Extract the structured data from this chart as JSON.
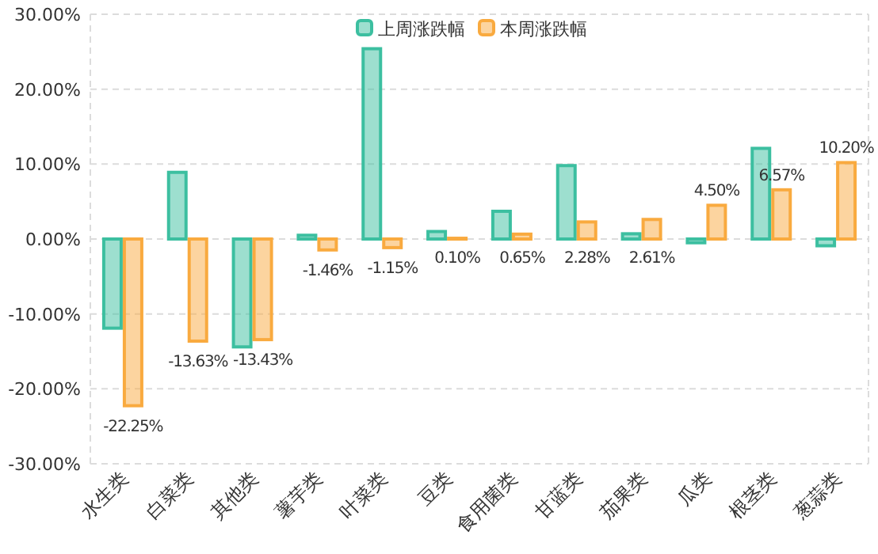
{
  "chart_data": {
    "type": "bar",
    "categories": [
      "水生类",
      "白菜类",
      "其他类",
      "薯芋类",
      "叶菜类",
      "豆类",
      "食用菌类",
      "甘蓝类",
      "茄果类",
      "瓜类",
      "根茎类",
      "葱蒜类"
    ],
    "series": [
      {
        "name": "上周涨跌幅",
        "color": "#3cbfa0",
        "values": [
          -11.9,
          8.9,
          -14.4,
          0.5,
          25.4,
          1.0,
          3.7,
          9.8,
          0.7,
          -0.5,
          12.1,
          -0.9
        ]
      },
      {
        "name": "本周涨跌幅",
        "color": "#f9aa3f",
        "values": [
          -22.25,
          -13.63,
          -13.43,
          -1.46,
          -1.15,
          0.1,
          0.65,
          2.28,
          2.61,
          4.5,
          6.57,
          10.2
        ],
        "value_labels": [
          "-22.25%",
          "-13.63%",
          "-13.43%",
          "-1.46%",
          "-1.15%",
          "0.10%",
          "0.65%",
          "2.28%",
          "2.61%",
          "4.50%",
          "6.57%",
          "10.20%"
        ]
      }
    ],
    "ylim": [
      -30,
      30
    ],
    "yticks": [
      {
        "value": 30,
        "label": "30.00%"
      },
      {
        "value": 20,
        "label": "20.00%"
      },
      {
        "value": 10,
        "label": "10.00%"
      },
      {
        "value": 0,
        "label": "0.00%"
      },
      {
        "value": -10,
        "label": "-10.00%"
      },
      {
        "value": -20,
        "label": "-20.00%"
      },
      {
        "value": -30,
        "label": "-30.00%"
      }
    ],
    "grid": "y",
    "legend": "top"
  }
}
